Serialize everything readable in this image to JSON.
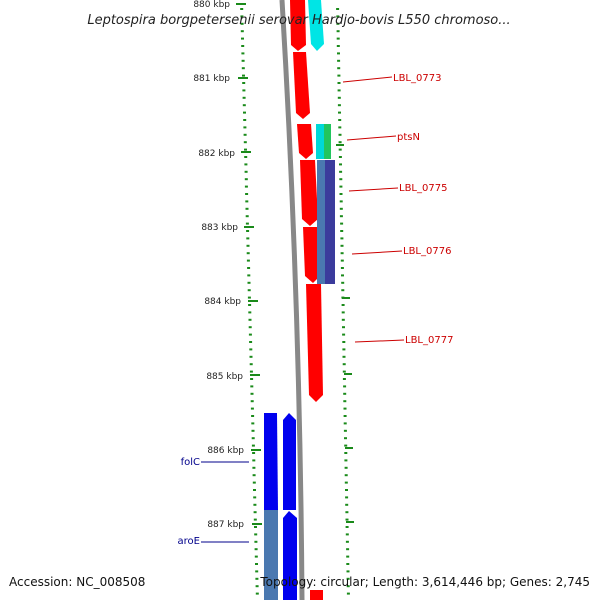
{
  "header": {
    "title": "Leptospira borgpetersenii serovar Hardjo-bovis L550 chromoso..."
  },
  "ticks": {
    "labels": [
      "880 kbp",
      "881 kbp",
      "882 kbp",
      "883 kbp",
      "884 kbp",
      "885 kbp",
      "886 kbp",
      "887 kbp"
    ]
  },
  "genes": {
    "labels": [
      "LBL_0773",
      "ptsN",
      "LBL_0775",
      "LBL_0776",
      "LBL_0777",
      "folC",
      "aroE"
    ],
    "colors": {
      "forward_label": "#cc0000",
      "reverse_label": "#00008b",
      "forward_feature": "#ff0000",
      "reverse_feature": "#0000ee",
      "cyan": "#00e5e5",
      "green": "#22c55e",
      "steel": "#4a78b0",
      "backbone": "#888888",
      "ticks": "#1a8a1a"
    }
  },
  "footer": {
    "accession": "Accession: NC_008508",
    "topology": "Topology: circular; Length: 3,614,446 bp; Genes: 2,745"
  }
}
